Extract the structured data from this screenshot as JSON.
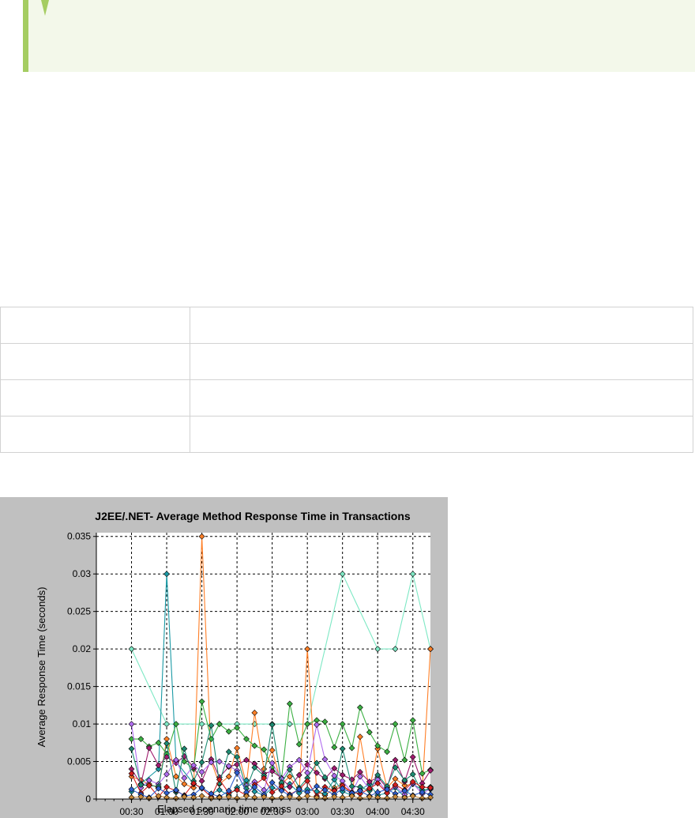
{
  "note": {
    "text": ""
  },
  "table": {
    "rows": [
      [
        "",
        ""
      ],
      [
        "",
        ""
      ],
      [
        "",
        ""
      ],
      [
        "",
        ""
      ]
    ]
  },
  "chart_data": {
    "type": "line",
    "title": "J2EE/.NET- Average Method Response Time in Transactions",
    "xlabel": "Elapsed scenario time mm:ss",
    "ylabel": "Average Response Time (seconds)",
    "x_tick_labels": [
      "00:30",
      "01:00",
      "01:30",
      "02:00",
      "02:30",
      "03:00",
      "03:30",
      "04:00",
      "04:30"
    ],
    "x_tick_values": [
      30,
      60,
      90,
      120,
      150,
      180,
      210,
      240,
      270
    ],
    "xlim": [
      0,
      285
    ],
    "y_ticks": [
      0,
      0.005,
      0.01,
      0.015,
      0.02,
      0.025,
      0.03,
      0.035
    ],
    "y_tick_labels": [
      "0",
      "0.005",
      "0.01",
      "0.015",
      "0.02",
      "0.025",
      "0.03",
      "0.035"
    ],
    "ylim": [
      0,
      0.0355
    ],
    "grid": true,
    "x": [
      30,
      38,
      45,
      53,
      60,
      68,
      75,
      83,
      90,
      98,
      105,
      113,
      120,
      128,
      135,
      143,
      150,
      158,
      165,
      173,
      180,
      188,
      195,
      203,
      210,
      218,
      225,
      233,
      240,
      248,
      255,
      263,
      270,
      278,
      285
    ],
    "series": [
      {
        "color": "#7de8c4",
        "values": [
          0.02,
          null,
          null,
          null,
          0.01,
          null,
          null,
          null,
          0.01,
          null,
          0.01,
          null,
          0.01,
          null,
          0.01,
          null,
          0.01,
          null,
          0.01,
          null,
          0.01,
          null,
          null,
          null,
          0.03,
          null,
          null,
          null,
          0.02,
          null,
          0.02,
          null,
          0.03,
          null,
          0.02
        ]
      },
      {
        "color": "#ff7f27",
        "values": [
          0.003,
          0.0025,
          0.002,
          0.0015,
          0.008,
          0.003,
          0.002,
          0.0015,
          0.035,
          0.005,
          0.002,
          0.003,
          0.0068,
          0.002,
          0.0115,
          0.004,
          0.0065,
          0.002,
          0.003,
          0.001,
          0.02,
          0.001,
          0.0005,
          0.0015,
          0.002,
          0.0005,
          0.0083,
          0.0012,
          0.0067,
          0.0015,
          0.0027,
          0.0018,
          0.002,
          0.0012,
          0.02
        ]
      },
      {
        "color": "#1b9aa5",
        "values": [
          0.001,
          null,
          null,
          0.004,
          0.03,
          0.005,
          null,
          0.002,
          0.0015,
          0.0007,
          0.0012,
          0.0005,
          0.0015,
          0.0025,
          0.001,
          0.0005,
          0.0015,
          0.0012,
          0.002,
          0.0008,
          0.0013,
          0.001,
          0.0007,
          0.0026,
          0.001,
          0.0005,
          0.0012,
          0.002,
          0.0005,
          0.0008,
          0.0015,
          0.0003,
          0.002,
          0.0012,
          0.0013
        ]
      },
      {
        "color": "#3cb043",
        "values": [
          0.008,
          0.008,
          0.007,
          0.0075,
          0.006,
          0.01,
          0.005,
          0.004,
          0.013,
          0.008,
          0.01,
          0.009,
          0.0095,
          0.008,
          0.0071,
          0.0066,
          0.0042,
          0.0027,
          0.0127,
          0.0073,
          0.01,
          0.0105,
          0.0103,
          0.0069,
          0.01,
          0.0068,
          0.0122,
          0.0089,
          0.0071,
          0.0063,
          0.01,
          0.0052,
          0.0105,
          0.0034,
          0.0039
        ]
      },
      {
        "color": "#a01c6f",
        "values": [
          0.004,
          0.002,
          0.0068,
          0.0045,
          0.0056,
          0.0048,
          0.0057,
          0.0042,
          0.0024,
          0.0053,
          0.0029,
          0.0043,
          0.0046,
          0.0052,
          0.0047,
          0.0034,
          0.0037,
          0.0028,
          0.0016,
          0.0032,
          0.0046,
          0.0035,
          0.0027,
          0.0041,
          0.0032,
          0.0026,
          0.0036,
          0.0023,
          0.0029,
          0.0015,
          0.0052,
          0.0023,
          0.0056,
          0.0021,
          0.0038
        ]
      },
      {
        "color": "#b06cf0",
        "values": [
          0.01,
          0.0015,
          0.0025,
          0.002,
          0.0033,
          0.0052,
          0.0028,
          0.0045,
          0.0036,
          0.0049,
          0.005,
          0.0044,
          0.0038,
          0.0018,
          0.0023,
          0.0012,
          0.0048,
          0.0027,
          0.0043,
          0.0052,
          0.0035,
          0.0099,
          0.0053,
          0.0031,
          0.0024,
          0.0009,
          0.003,
          0.0013,
          0.0026,
          0.0008,
          0.0017,
          0.0006,
          0.0021,
          0.0007,
          0.0014
        ]
      },
      {
        "color": "#1e8c73",
        "values": [
          0.0067,
          0.0019,
          0.0018,
          0.0017,
          0.0074,
          0.0009,
          0.0067,
          0.0024,
          0.0049,
          0.0098,
          0.0021,
          0.0063,
          0.0056,
          0.0014,
          0.0042,
          0.0031,
          0.0099,
          0.0022,
          0.0039,
          0.0015,
          0.0028,
          0.0048,
          0.0029,
          0.0012,
          0.0067,
          0.0017,
          0.0016,
          0.0011,
          0.0032,
          0.0017,
          0.0042,
          0.0025,
          0.0033,
          0.0009,
          0.0016
        ]
      },
      {
        "color": "#d21f1f",
        "values": [
          0.0034,
          0.0008,
          0.0018,
          0.0003,
          0.0016,
          0.0011,
          0.0005,
          0.0021,
          0.0014,
          0.0003,
          0.0026,
          0.0008,
          0.0012,
          0.0005,
          0.0019,
          0.0028,
          0.0009,
          0.0017,
          0.0006,
          0.0013,
          0.0024,
          0.0004,
          0.0016,
          0.0011,
          0.0018,
          0.0009,
          0.0007,
          0.0014,
          0.0021,
          0.0008,
          0.0019,
          0.0012,
          0.0023,
          0.0016,
          0.0015
        ]
      },
      {
        "color": "#2f5fd0",
        "values": [
          0.0013,
          0.0006,
          0.0002,
          0.0014,
          0.0008,
          0.0012,
          0.0004,
          0.0006,
          0.0015,
          0.0007,
          0.0003,
          0.0011,
          0.0035,
          0.0009,
          0.0016,
          0.0006,
          0.0022,
          0.0011,
          0.0005,
          0.0013,
          0.0009,
          0.0017,
          0.0012,
          0.0006,
          0.0014,
          0.0008,
          0.0011,
          0.0004,
          0.0009,
          0.0013,
          0.0007,
          0.0011,
          0.0005,
          0.0009,
          0.0006
        ]
      },
      {
        "color": "#c98a3b",
        "values": [
          0.0002,
          0.0003,
          0.0001,
          0.0004,
          0.0002,
          0.0001,
          0.0003,
          0.0002,
          0.0004,
          0.0001,
          0.0002,
          0.0003,
          0.0001,
          0.0004,
          0.0002,
          0.0003,
          0.0001,
          0.0002,
          0.0003,
          0.0001,
          0.0004,
          0.0002,
          0.0001,
          0.0003,
          0.0002,
          0.0004,
          0.0001,
          0.0003,
          0.0002,
          0.0001,
          0.0003,
          0.0002,
          0.0004,
          0.0001,
          0.0002
        ]
      }
    ]
  }
}
